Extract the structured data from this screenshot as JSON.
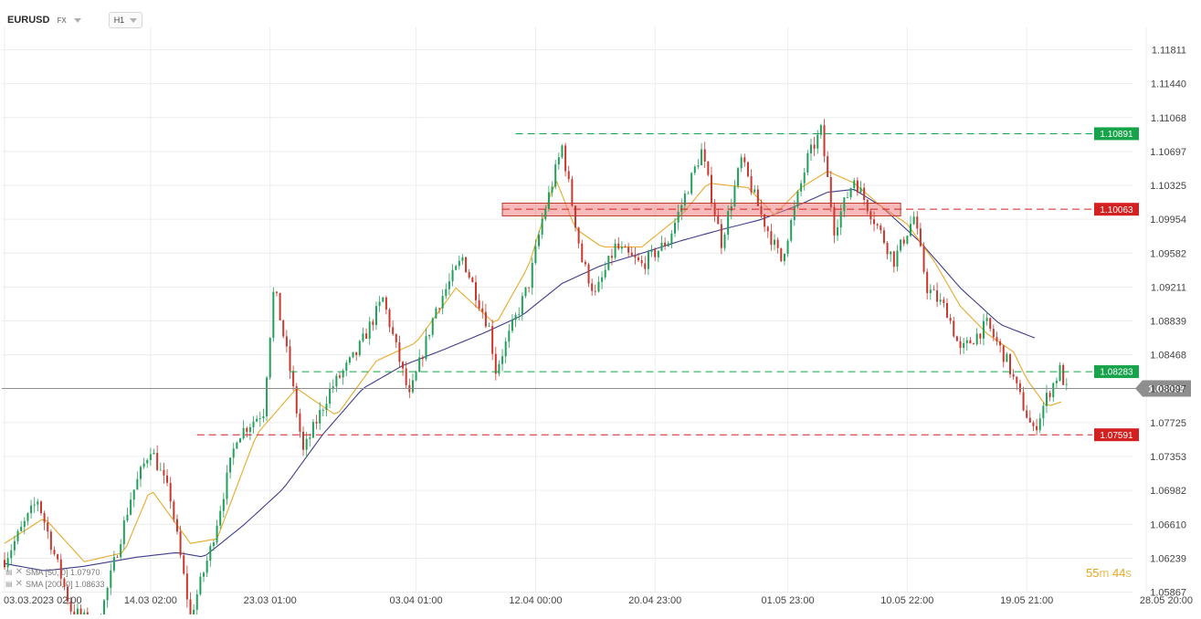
{
  "header": {
    "symbol": "EURUSD",
    "market": "FX",
    "timeframe": "H1"
  },
  "legend": [
    {
      "label": "SMA [50, 0] 1.07970",
      "color": "#e9a92a"
    },
    {
      "label": "SMA [200, 0] 1.08633",
      "color": "#3d3d8c"
    }
  ],
  "timer": {
    "minutes": "55",
    "minutes_unit": "m",
    "seconds": "44",
    "seconds_unit": "s"
  },
  "chart_data": {
    "type": "candlestick",
    "symbol": "EURUSD",
    "timeframe": "H1",
    "ylim": [
      1.0567,
      1.12
    ],
    "y_ticks": [
      "1.11811",
      "1.11440",
      "1.11068",
      "1.10697",
      "1.10325",
      "1.09954",
      "1.09582",
      "1.09211",
      "1.08839",
      "1.08468",
      "1.08097",
      "1.07725",
      "1.07353",
      "1.06982",
      "1.06610",
      "1.06239",
      "1.05867"
    ],
    "x_ticks": [
      "03.03.2023 02:00",
      "14.03 02:00",
      "23.03 01:00",
      "03.04 01:00",
      "12.04 00:00",
      "20.04 23:00",
      "01.05 23:00",
      "10.05 22:00",
      "19.05 21:00",
      "28.05 20:00"
    ],
    "x_tick_days": [
      0,
      11,
      20,
      31,
      40,
      49,
      59,
      68,
      77,
      86
    ],
    "current_price": 1.08099,
    "current_price_label": "1.08099",
    "levels": [
      {
        "value": 1.10891,
        "label": "1.10891",
        "color": "#16a34a",
        "style": "dashed",
        "from_day": 38.5
      },
      {
        "value": 1.10063,
        "label": "1.10063",
        "color": "#d42020",
        "style": "dashed",
        "from_day": 37.5
      },
      {
        "value": 1.08283,
        "label": "1.08283",
        "color": "#16a34a",
        "style": "dashed",
        "from_day": 21.5
      },
      {
        "value": 1.07591,
        "label": "1.07591",
        "color": "#d42020",
        "style": "dashed",
        "from_day": 14.5
      }
    ],
    "zone": {
      "from_day": 37.5,
      "to_day": 67.5,
      "low": 1.0999,
      "high": 1.1013,
      "color": "#f08080"
    },
    "series": [
      {
        "name": "SMA [50, 0]",
        "color": "#e9a92a"
      },
      {
        "name": "SMA [200, 0]",
        "color": "#3d3d8c"
      }
    ],
    "price_path": [
      [
        0,
        1.0622
      ],
      [
        2.5,
        1.0688
      ],
      [
        5,
        1.0568
      ],
      [
        7,
        1.0547
      ],
      [
        9.5,
        1.069
      ],
      [
        11,
        1.0745
      ],
      [
        12.5,
        1.069
      ],
      [
        14,
        1.056
      ],
      [
        15.5,
        1.0633
      ],
      [
        17.5,
        1.0758
      ],
      [
        19.5,
        1.0785
      ],
      [
        20.3,
        1.0922
      ],
      [
        21.5,
        1.083
      ],
      [
        22.5,
        1.074
      ],
      [
        24.5,
        1.0808
      ],
      [
        26.5,
        1.0848
      ],
      [
        28.5,
        1.0908
      ],
      [
        30.5,
        1.08
      ],
      [
        32.5,
        1.0898
      ],
      [
        34.5,
        1.0953
      ],
      [
        36.5,
        1.0876
      ],
      [
        37,
        1.083
      ],
      [
        39.5,
        1.0925
      ],
      [
        40.5,
        1.0995
      ],
      [
        42,
        1.1075
      ],
      [
        43.5,
        1.095
      ],
      [
        44.5,
        1.0912
      ],
      [
        46,
        1.0965
      ],
      [
        48,
        1.0945
      ],
      [
        50,
        1.0972
      ],
      [
        52.5,
        1.107
      ],
      [
        54,
        1.097
      ],
      [
        55.5,
        1.106
      ],
      [
        57,
        1.1
      ],
      [
        58.5,
        1.095
      ],
      [
        60.5,
        1.1062
      ],
      [
        61.5,
        1.1092
      ],
      [
        62.5,
        1.0985
      ],
      [
        64,
        1.104
      ],
      [
        65.5,
        1.0995
      ],
      [
        67,
        1.095
      ],
      [
        68.5,
        1.0998
      ],
      [
        69.5,
        1.092
      ],
      [
        71,
        1.0895
      ],
      [
        72,
        1.085
      ],
      [
        74,
        1.088
      ],
      [
        75.5,
        1.084
      ],
      [
        76.5,
        1.08
      ],
      [
        77.5,
        1.0762
      ],
      [
        78.5,
        1.08
      ],
      [
        79.5,
        1.083
      ],
      [
        80,
        1.0808
      ]
    ],
    "sma50_path": [
      [
        0,
        1.064
      ],
      [
        3,
        1.0668
      ],
      [
        6,
        1.062
      ],
      [
        9,
        1.063
      ],
      [
        11,
        1.07
      ],
      [
        14,
        1.064
      ],
      [
        16,
        1.0645
      ],
      [
        19,
        1.076
      ],
      [
        22,
        1.081
      ],
      [
        25,
        1.078
      ],
      [
        28,
        1.084
      ],
      [
        31,
        1.086
      ],
      [
        34,
        1.092
      ],
      [
        37,
        1.088
      ],
      [
        39.5,
        1.0945
      ],
      [
        41.5,
        1.104
      ],
      [
        43,
        1.0985
      ],
      [
        45,
        1.0965
      ],
      [
        48,
        1.0965
      ],
      [
        51,
        1.1
      ],
      [
        53,
        1.1035
      ],
      [
        56,
        1.103
      ],
      [
        58,
        1.1
      ],
      [
        60,
        1.103
      ],
      [
        62,
        1.1048
      ],
      [
        64,
        1.1035
      ],
      [
        66,
        1.101
      ],
      [
        68,
        1.099
      ],
      [
        70,
        1.095
      ],
      [
        72,
        1.09
      ],
      [
        74,
        1.087
      ],
      [
        76,
        1.085
      ],
      [
        77,
        1.082
      ],
      [
        78.5,
        1.079
      ],
      [
        80,
        1.0797
      ]
    ],
    "sma200_path": [
      [
        0,
        1.0618
      ],
      [
        3,
        1.061
      ],
      [
        6,
        1.0615
      ],
      [
        10,
        1.0625
      ],
      [
        13,
        1.063
      ],
      [
        15,
        1.0625
      ],
      [
        18,
        1.066
      ],
      [
        21,
        1.07
      ],
      [
        24,
        1.076
      ],
      [
        27,
        1.081
      ],
      [
        30,
        1.0835
      ],
      [
        33,
        1.0852
      ],
      [
        36,
        1.087
      ],
      [
        39,
        1.089
      ],
      [
        42,
        1.0925
      ],
      [
        45,
        1.0945
      ],
      [
        48,
        1.0958
      ],
      [
        51,
        1.0972
      ],
      [
        54,
        1.0984
      ],
      [
        57,
        1.0995
      ],
      [
        60,
        1.1012
      ],
      [
        62,
        1.1025
      ],
      [
        64,
        1.1028
      ],
      [
        66,
        1.101
      ],
      [
        69,
        1.097
      ],
      [
        72,
        1.092
      ],
      [
        75,
        1.088
      ],
      [
        78,
        1.0863
      ]
    ]
  }
}
